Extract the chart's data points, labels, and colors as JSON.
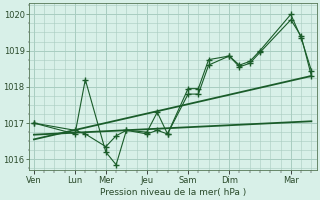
{
  "background_color": "#d8f0e8",
  "plot_bg_color": "#d8f0e8",
  "grid_color": "#a8ccc0",
  "line_color": "#1a5c2a",
  "ylabel": "Pression niveau de la mer( hPa )",
  "ylim": [
    1015.7,
    1020.3
  ],
  "yticks": [
    1016,
    1017,
    1018,
    1019,
    1020
  ],
  "day_labels": [
    "Ven",
    "Lun",
    "Mer",
    "Jeu",
    "Sam",
    "Dim",
    "Mar"
  ],
  "day_x": [
    0,
    4,
    7,
    11,
    15,
    19,
    25
  ],
  "xlim": [
    -0.5,
    27.5
  ],
  "series1_x": [
    0,
    4,
    5,
    7,
    8,
    9,
    11,
    12,
    13,
    15,
    16,
    17,
    19,
    20,
    21,
    22,
    25,
    26,
    27
  ],
  "series1_y": [
    1017.0,
    1016.7,
    1018.2,
    1016.2,
    1015.85,
    1016.8,
    1016.75,
    1017.3,
    1016.7,
    1017.95,
    1017.95,
    1018.75,
    1018.85,
    1018.6,
    1018.7,
    1019.0,
    1020.0,
    1019.35,
    1018.45
  ],
  "series2_x": [
    0,
    4,
    5,
    7,
    8,
    9,
    11,
    12,
    13,
    15,
    16,
    17,
    19,
    20,
    21,
    22,
    25,
    26,
    27
  ],
  "series2_y": [
    1017.0,
    1016.8,
    1016.7,
    1016.35,
    1016.65,
    1016.8,
    1016.7,
    1016.8,
    1016.7,
    1017.8,
    1017.8,
    1018.6,
    1018.85,
    1018.55,
    1018.65,
    1018.95,
    1019.85,
    1019.4,
    1018.3
  ],
  "trend1_x": [
    0,
    27
  ],
  "trend1_y": [
    1016.55,
    1018.3
  ],
  "trend2_x": [
    0,
    27
  ],
  "trend2_y": [
    1016.68,
    1017.05
  ],
  "num_minor_ticks": 28
}
